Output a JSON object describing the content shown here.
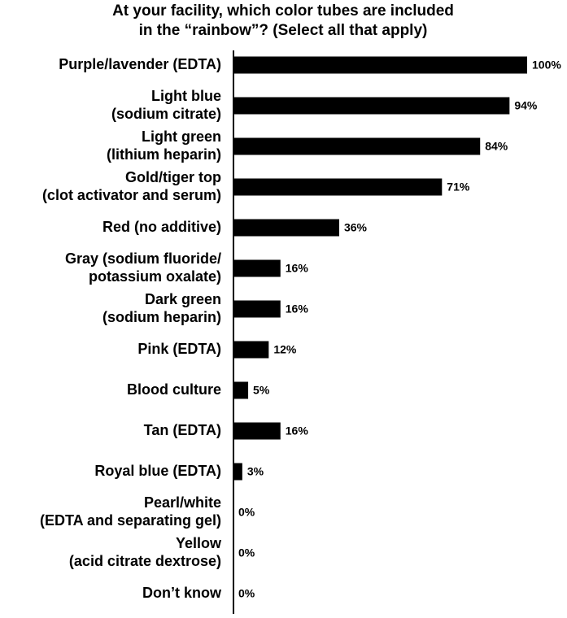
{
  "chart_data": {
    "type": "bar",
    "orientation": "horizontal",
    "title": [
      "At your facility, which color tubes are included",
      "in the “rainbow”? (Select all that apply)"
    ],
    "categories": [
      [
        "Purple/lavender (EDTA)"
      ],
      [
        "Light blue",
        "(sodium citrate)"
      ],
      [
        "Light green",
        "(lithium heparin)"
      ],
      [
        "Gold/tiger top",
        "(clot activator and serum)"
      ],
      [
        "Red (no additive)"
      ],
      [
        "Gray (sodium fluoride/",
        "potassium oxalate)"
      ],
      [
        "Dark green",
        "(sodium heparin)"
      ],
      [
        "Pink (EDTA)"
      ],
      [
        "Blood culture"
      ],
      [
        "Tan (EDTA)"
      ],
      [
        "Royal blue (EDTA)"
      ],
      [
        "Pearl/white",
        "(EDTA and separating gel)"
      ],
      [
        "Yellow",
        "(acid citrate dextrose)"
      ],
      [
        "Don’t know"
      ]
    ],
    "values": [
      100,
      94,
      84,
      71,
      36,
      16,
      16,
      12,
      5,
      16,
      3,
      0,
      0,
      0
    ],
    "value_labels": [
      "100%",
      "94%",
      "84%",
      "71%",
      "36%",
      "16%",
      "16%",
      "12%",
      "5%",
      "16%",
      "3%",
      "0%",
      "0%",
      "0%"
    ],
    "color": "#000000",
    "xlim": [
      0,
      100
    ]
  }
}
